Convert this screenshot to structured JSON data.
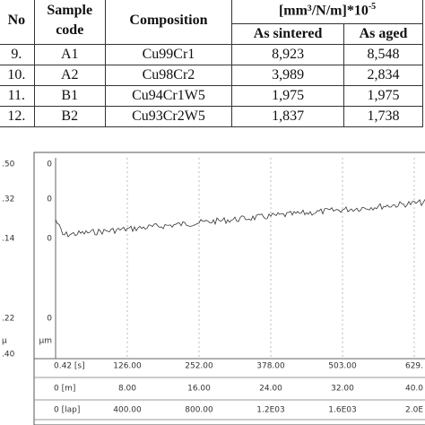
{
  "table": {
    "headers": {
      "no": "No",
      "sample_code": "Sample code",
      "composition": "Composition",
      "unit_base": "[mm³/N/m]*10",
      "unit_exponent": "-5",
      "as_sintered": "As sintered",
      "as_aged": "As aged"
    },
    "rows": [
      [
        "9.",
        "A1",
        "Cu99Cr1",
        "8,923",
        "8,548"
      ],
      [
        "10.",
        "A2",
        "Cu98Cr2",
        "3,989",
        "2,834"
      ],
      [
        "11.",
        "B1",
        "Cu94Cr1W5",
        "1,975",
        "1,975"
      ],
      [
        "12.",
        "B2",
        "Cu93Cr2W5",
        "1,837",
        "1,738"
      ]
    ]
  },
  "figure": {
    "left_labels": [
      ".50",
      ".32",
      ".14",
      ".22",
      "μ",
      ".40"
    ],
    "inner_labels": [
      "0",
      "0",
      "0",
      "0",
      "μm"
    ],
    "x_axes": [
      [
        "0.42 [s]",
        "126.00",
        "252.00",
        "378.00",
        "503.00",
        "629."
      ],
      [
        "0 [m]",
        "8.00",
        "16.00",
        "24.00",
        "32.00",
        "40.0"
      ],
      [
        "0 [lap]",
        "400.00",
        "800.00",
        "1.2E03",
        "1.6E03",
        "2.0E"
      ]
    ]
  }
}
